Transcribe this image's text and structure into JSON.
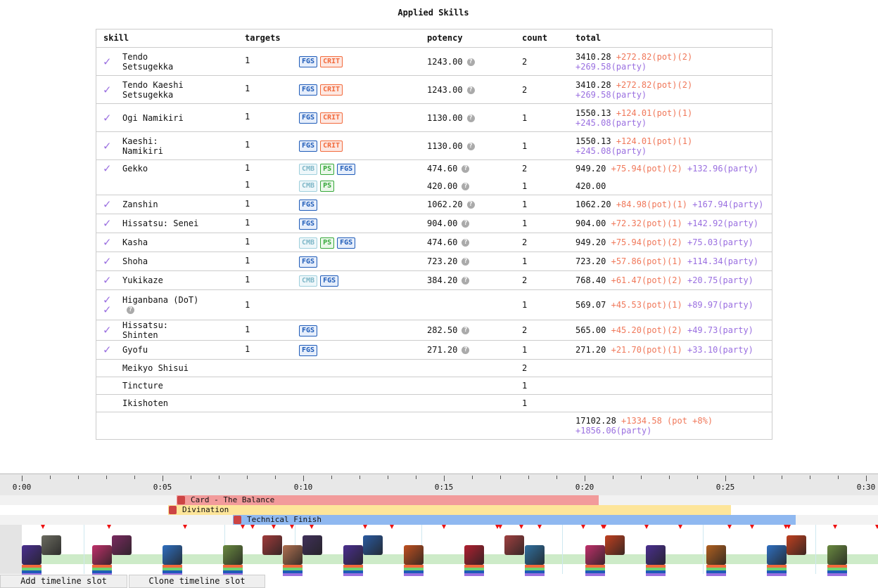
{
  "title": "Applied Skills",
  "headers": {
    "skill": "skill",
    "targets": "targets",
    "potency": "potency",
    "count": "count",
    "total": "total"
  },
  "rows": [
    {
      "skill": "Tendo Setsugekka",
      "checked": true,
      "targets": "1",
      "tags": [
        "FGS",
        "CRIT"
      ],
      "potency": "1243.00",
      "help": true,
      "count": "2",
      "total": "3410.28",
      "pot": "+272.82(pot)(2)",
      "party": "+269.58(party)",
      "wrap": true
    },
    {
      "skill": "Tendo Kaeshi Setsugekka",
      "checked": true,
      "targets": "1",
      "tags": [
        "FGS",
        "CRIT"
      ],
      "potency": "1243.00",
      "help": true,
      "count": "2",
      "total": "3410.28",
      "pot": "+272.82(pot)(2)",
      "party": "+269.58(party)",
      "wrap": true
    },
    {
      "skill": "Ogi Namikiri",
      "checked": true,
      "targets": "1",
      "tags": [
        "FGS",
        "CRIT"
      ],
      "potency": "1130.00",
      "help": true,
      "count": "1",
      "total": "1550.13",
      "pot": "+124.01(pot)(1)",
      "party": "+245.08(party)",
      "wrap": true
    },
    {
      "skill": "Kaeshi: Namikiri",
      "checked": true,
      "targets": "1",
      "tags": [
        "FGS",
        "CRIT"
      ],
      "potency": "1130.00",
      "help": true,
      "count": "1",
      "total": "1550.13",
      "pot": "+124.01(pot)(1)",
      "party": "+245.08(party)",
      "wrap": true
    },
    {
      "skill": "Gekko",
      "checked": true,
      "targets": "1",
      "tags": [
        "CMB",
        "PS",
        "FGS"
      ],
      "potency": "474.60",
      "help": true,
      "count": "2",
      "total": "949.20",
      "pot": "+75.94(pot)(2)",
      "party": "+132.96(party)"
    },
    {
      "skill": "",
      "checked": false,
      "sub": true,
      "targets": "1",
      "tags": [
        "CMB",
        "PS"
      ],
      "potency": "420.00",
      "help": true,
      "count": "1",
      "total": "420.00",
      "pot": "",
      "party": ""
    },
    {
      "skill": "Zanshin",
      "checked": true,
      "targets": "1",
      "tags": [
        "FGS"
      ],
      "potency": "1062.20",
      "help": true,
      "count": "1",
      "total": "1062.20",
      "pot": "+84.98(pot)(1)",
      "party": "+167.94(party)"
    },
    {
      "skill": "Hissatsu: Senei",
      "checked": true,
      "targets": "1",
      "tags": [
        "FGS"
      ],
      "potency": "904.00",
      "help": true,
      "count": "1",
      "total": "904.00",
      "pot": "+72.32(pot)(1)",
      "party": "+142.92(party)"
    },
    {
      "skill": "Kasha",
      "checked": true,
      "targets": "1",
      "tags": [
        "CMB",
        "PS",
        "FGS"
      ],
      "potency": "474.60",
      "help": true,
      "count": "2",
      "total": "949.20",
      "pot": "+75.94(pot)(2)",
      "party": "+75.03(party)"
    },
    {
      "skill": "Shoha",
      "checked": true,
      "targets": "1",
      "tags": [
        "FGS"
      ],
      "potency": "723.20",
      "help": true,
      "count": "1",
      "total": "723.20",
      "pot": "+57.86(pot)(1)",
      "party": "+114.34(party)"
    },
    {
      "skill": "Yukikaze",
      "checked": true,
      "targets": "1",
      "tags": [
        "CMB",
        "FGS"
      ],
      "potency": "384.20",
      "help": true,
      "count": "2",
      "total": "768.40",
      "pot": "+61.47(pot)(2)",
      "party": "+20.75(party)"
    },
    {
      "skill": "Higanbana (DoT)",
      "checked": true,
      "double": true,
      "skillhelp": true,
      "targets": "1",
      "tags": [],
      "potency": "",
      "help": false,
      "count": "1",
      "total": "569.07",
      "pot": "+45.53(pot)(1)",
      "party": "+89.97(party)"
    },
    {
      "skill": "Hissatsu: Shinten",
      "checked": true,
      "targets": "1",
      "tags": [
        "FGS"
      ],
      "potency": "282.50",
      "help": true,
      "count": "2",
      "total": "565.00",
      "pot": "+45.20(pot)(2)",
      "party": "+49.73(party)"
    },
    {
      "skill": "Gyofu",
      "checked": true,
      "targets": "1",
      "tags": [
        "FGS"
      ],
      "potency": "271.20",
      "help": true,
      "count": "1",
      "total": "271.20",
      "pot": "+21.70(pot)(1)",
      "party": "+33.10(party)"
    },
    {
      "skill": "Meikyo Shisui",
      "checked": false,
      "targets": "",
      "tags": [],
      "potency": "",
      "help": false,
      "count": "2",
      "total": "",
      "pot": "",
      "party": ""
    },
    {
      "skill": "Tincture",
      "checked": false,
      "targets": "",
      "tags": [],
      "potency": "",
      "help": false,
      "count": "1",
      "total": "",
      "pot": "",
      "party": ""
    },
    {
      "skill": "Ikishoten",
      "checked": false,
      "targets": "",
      "tags": [],
      "potency": "",
      "help": false,
      "count": "1",
      "total": "",
      "pot": "",
      "party": ""
    }
  ],
  "summary": {
    "total": "17102.28",
    "pot": "+1334.58 (pot +8%)",
    "party": "+1856.06(party)"
  },
  "timeline": {
    "ticks": [
      "0:00",
      "0:05",
      "0:10",
      "0:15",
      "0:20",
      "0:25",
      "0:30"
    ],
    "buffs": [
      {
        "name": "Card - The Balance",
        "start": 5.5,
        "end": 20.5,
        "color": "#f29b9b",
        "lane": 0
      },
      {
        "name": "Divination",
        "start": 5.2,
        "end": 25.2,
        "color": "#fde59a",
        "lane": 1
      },
      {
        "name": "Technical Finish",
        "start": 7.5,
        "end": 27.5,
        "color": "#8fb8f0",
        "lane": 2
      }
    ],
    "damage_marks": [
      0.75,
      3.1,
      5.8,
      7.85,
      8.2,
      8.95,
      9.6,
      10.3,
      12.2,
      13.15,
      15,
      16.9,
      17,
      17.75,
      18.4,
      19.95,
      20.65,
      20.7,
      22.2,
      23.4,
      25.15,
      25.95,
      27.15,
      27.25,
      28.9,
      30.4
    ],
    "skills": [
      {
        "t": 0,
        "row": 1,
        "color": "#4a2f8f"
      },
      {
        "t": 0.7,
        "row": 0,
        "color": "#6b6b60"
      },
      {
        "t": 2.5,
        "row": 1,
        "color": "#c0306a"
      },
      {
        "t": 3.2,
        "row": 0,
        "color": "#7a2a60"
      },
      {
        "t": 5,
        "row": 1,
        "color": "#2f6fc0"
      },
      {
        "t": 7.15,
        "row": 1,
        "color": "#6a8a40"
      },
      {
        "t": 8.55,
        "row": 0,
        "color": "#a03a3a"
      },
      {
        "t": 9.275,
        "row": 1,
        "color": "#b07050"
      },
      {
        "t": 9.975,
        "row": 0,
        "color": "#40305a"
      },
      {
        "t": 11.425,
        "row": 1,
        "color": "#4a2f8f"
      },
      {
        "t": 12.125,
        "row": 0,
        "color": "#2a5aa0"
      },
      {
        "t": 13.575,
        "row": 1,
        "color": "#c05020"
      },
      {
        "t": 15.725,
        "row": 1,
        "color": "#b02030"
      },
      {
        "t": 17.15,
        "row": 0,
        "color": "#a04040"
      },
      {
        "t": 17.875,
        "row": 1,
        "color": "#3070a0"
      },
      {
        "t": 20.025,
        "row": 1,
        "color": "#c0306a"
      },
      {
        "t": 20.725,
        "row": 0,
        "color": "#c04020"
      },
      {
        "t": 22.175,
        "row": 1,
        "color": "#4a2f8f"
      },
      {
        "t": 24.325,
        "row": 1,
        "color": "#b06020"
      },
      {
        "t": 26.475,
        "row": 1,
        "color": "#2f6fc0"
      },
      {
        "t": 27.175,
        "row": 0,
        "color": "#c04020"
      },
      {
        "t": 28.625,
        "row": 1,
        "color": "#6a8a40"
      }
    ]
  },
  "buttons": {
    "add": "Add timeline slot",
    "clone": "Clone timeline slot"
  }
}
